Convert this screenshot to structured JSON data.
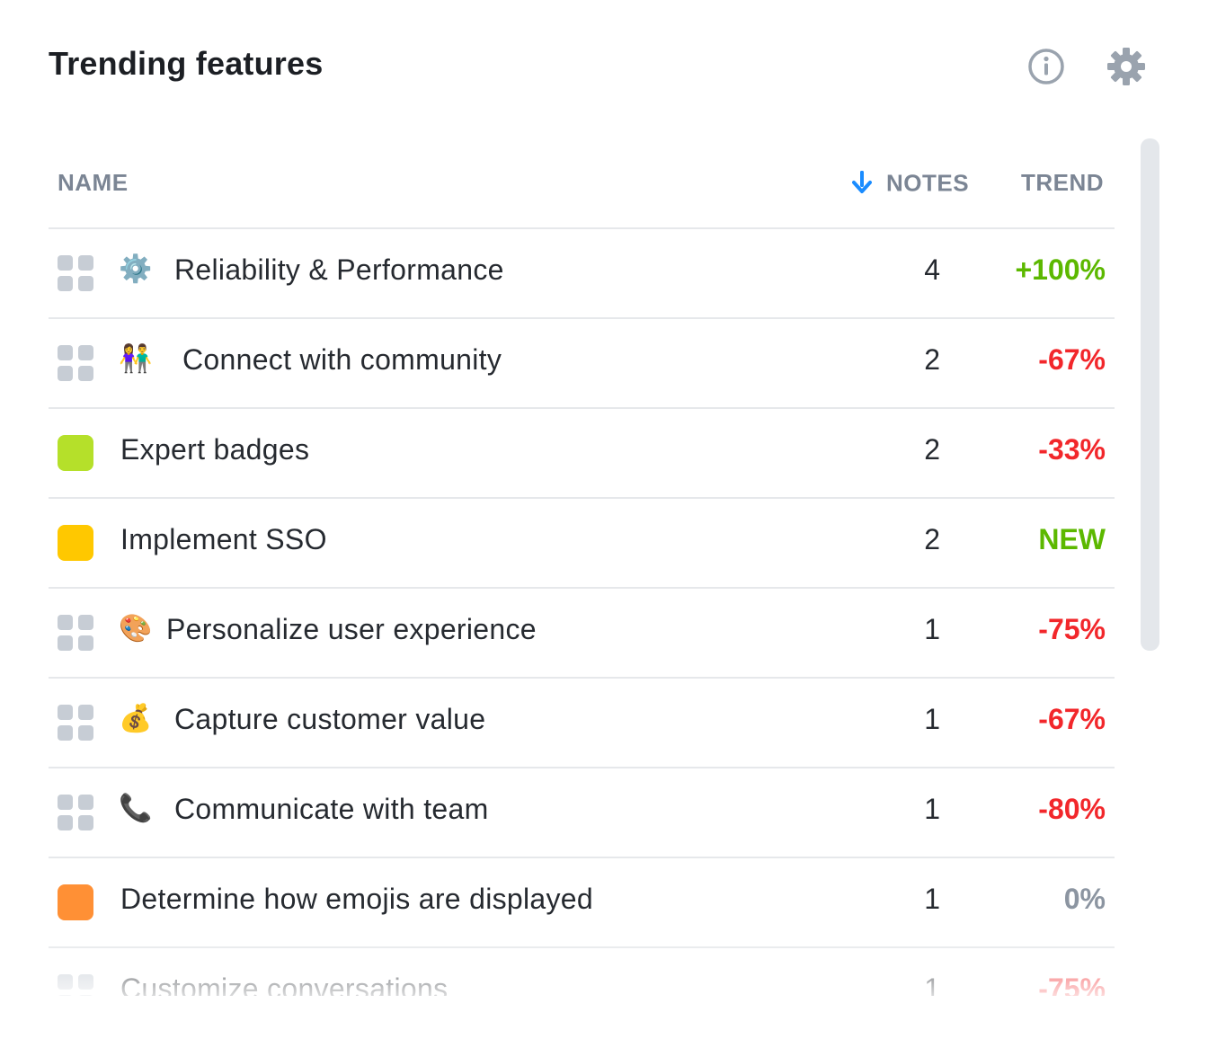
{
  "widget": {
    "title": "Trending features",
    "info_icon": "info-icon",
    "settings_icon": "gear-icon"
  },
  "table": {
    "headers": {
      "name": "NAME",
      "notes": "NOTES",
      "trend": "TREND"
    },
    "sort": {
      "column": "notes",
      "direction": "descending",
      "icon": "arrow-down-icon"
    },
    "rows": [
      {
        "lead": "grid",
        "emoji": "⚙️",
        "name": "Reliability & Performance",
        "notes": "4",
        "trend": "+100%",
        "trend_color": "#5cb800"
      },
      {
        "lead": "grid",
        "emoji": "👫",
        "name": "Connect with community",
        "notes": "2",
        "trend": "-67%",
        "trend_color": "#f2272b"
      },
      {
        "lead": "swatch",
        "swatch_color": "#b5e02a",
        "name": "Expert badges",
        "notes": "2",
        "trend": "-33%",
        "trend_color": "#f2272b"
      },
      {
        "lead": "swatch",
        "swatch_color": "#ffc800",
        "name": "Implement SSO",
        "notes": "2",
        "trend": "NEW",
        "trend_color": "#5cb800"
      },
      {
        "lead": "grid",
        "emoji": "🎨",
        "name": "Personalize user experience",
        "notes": "1",
        "trend": "-75%",
        "trend_color": "#f2272b"
      },
      {
        "lead": "grid",
        "emoji": "💰",
        "name": "Capture customer value",
        "notes": "1",
        "trend": "-67%",
        "trend_color": "#f2272b"
      },
      {
        "lead": "grid",
        "emoji": "📞",
        "name": "Communicate with team",
        "notes": "1",
        "trend": "-80%",
        "trend_color": "#f2272b"
      },
      {
        "lead": "swatch",
        "swatch_color": "#ff9035",
        "name": "Determine how emojis are displayed",
        "notes": "1",
        "trend": "0%",
        "trend_color": "#8c95a1"
      },
      {
        "lead": "grid",
        "name": "Customize conversations",
        "notes": "1",
        "trend": "-75%",
        "trend_color": "#f2272b"
      }
    ]
  }
}
